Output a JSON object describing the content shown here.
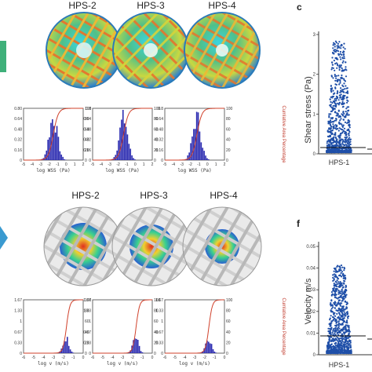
{
  "top": {
    "sphere_titles": [
      "HPS-2",
      "HPS-3",
      "HPS-4"
    ],
    "hist_xlabel": "log WSS (Pa)",
    "right_axis_label": "Cumlative Area Percentage",
    "hist_y_ticks": [
      "0.8",
      "0.64",
      "0.48",
      "0.32",
      "0.16",
      "0"
    ],
    "hist1_y_ticks": [
      "0.80",
      "0.64",
      "0.48",
      "0.32",
      "0.16",
      "0"
    ],
    "hist_x_ticks": [
      "-5",
      "-4",
      "-3",
      "-2",
      "-1",
      "0",
      "1",
      "2"
    ],
    "right_ticks": [
      "100",
      "80",
      "60",
      "40",
      "20",
      "0"
    ]
  },
  "bottom": {
    "sphere_titles": [
      "HPS-2",
      "HPS-3",
      "HPS-4"
    ],
    "hist_xlabel": "log v (m/s)",
    "right_axis_label": "Cumlative Area Percentage",
    "hist_y_ticks": [
      "1.67",
      "1.33",
      "1",
      "0.67",
      "0.33",
      "0"
    ],
    "hist_x_ticks": [
      "-6",
      "-5",
      "-4",
      "-3",
      "-2",
      "-1",
      "0"
    ],
    "right_ticks": [
      "100",
      "80",
      "60",
      "40",
      "20",
      "0"
    ]
  },
  "panel_c": {
    "letter": "c",
    "ylabel": "Shear stress (Pa)",
    "y_ticks": [
      "3",
      "2",
      "1",
      "0"
    ],
    "xlabel": "HPS-1"
  },
  "panel_f": {
    "letter": "f",
    "ylabel": "Velocity m/s",
    "y_ticks": [
      "0.05",
      "0.04",
      "0.03",
      "0.02",
      "0.01",
      "0"
    ],
    "xlabel": "HPS-1"
  },
  "colors": {
    "hist_bar": "#2a2ab0",
    "cumulative": "#d0402a",
    "scatter": "#1f4fa8",
    "right_label": "#c0392b"
  }
}
